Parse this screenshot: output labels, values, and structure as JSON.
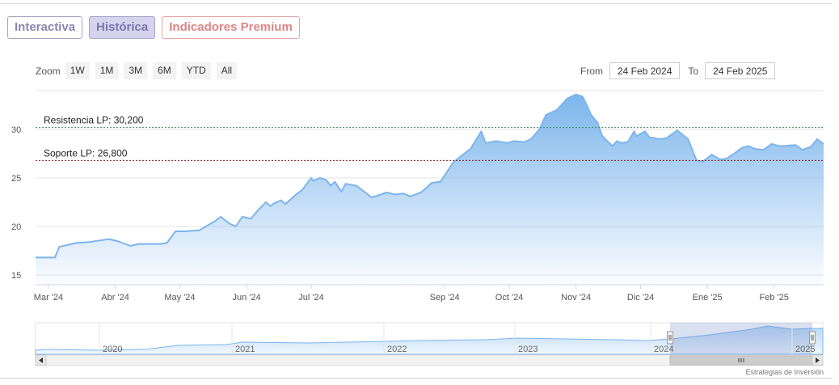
{
  "tabs": [
    {
      "label": "Interactiva"
    },
    {
      "label": "Histórica"
    },
    {
      "label": "Indicadores Premium"
    }
  ],
  "zoom": {
    "label": "Zoom",
    "buttons": [
      "1W",
      "1M",
      "3M",
      "6M",
      "YTD",
      "All"
    ]
  },
  "range": {
    "from_label": "From",
    "from_value": "24 Feb 2024",
    "to_label": "To",
    "to_value": "24 Feb 2025"
  },
  "credit": "Estrategias de Inversión",
  "colors": {
    "line": "#7cb5ec",
    "resistance": "#2e8b57",
    "support": "#8b1a1a",
    "active_tab": "#d6d3ee",
    "premium_tab": "#dd8585"
  },
  "chart_data": {
    "type": "area",
    "ylim": [
      14,
      34
    ],
    "yticks": [
      15,
      20,
      25,
      30
    ],
    "xlim": [
      "2024-02-24",
      "2025-02-24"
    ],
    "xticks": [
      {
        "label": "Mar '24",
        "date": "2024-03-01"
      },
      {
        "label": "Abr '24",
        "date": "2024-04-01"
      },
      {
        "label": "May '24",
        "date": "2024-05-01"
      },
      {
        "label": "Jun '24",
        "date": "2024-06-01"
      },
      {
        "label": "Jul '24",
        "date": "2024-07-01"
      },
      {
        "label": "Sep '24",
        "date": "2024-09-01"
      },
      {
        "label": "Oct '24",
        "date": "2024-10-01"
      },
      {
        "label": "Nov '24",
        "date": "2024-11-01"
      },
      {
        "label": "Dic '24",
        "date": "2024-12-01"
      },
      {
        "label": "Ene '25",
        "date": "2025-01-01"
      },
      {
        "label": "Feb '25",
        "date": "2025-02-01"
      }
    ],
    "reference_lines": [
      {
        "label": "Resistencia LP: 30,200",
        "value": 30.2,
        "color": "#2e8b57"
      },
      {
        "label": "Soporte LP: 26,800",
        "value": 26.8,
        "color": "#8b1a1a"
      }
    ],
    "series": [
      {
        "x": [
          "2024-02-24",
          "2024-03-04",
          "2024-03-06",
          "2024-03-14",
          "2024-03-20",
          "2024-03-29",
          "2024-04-02",
          "2024-04-08",
          "2024-04-12",
          "2024-04-22",
          "2024-04-25",
          "2024-04-29",
          "2024-05-03",
          "2024-05-10",
          "2024-05-13",
          "2024-05-17",
          "2024-05-20",
          "2024-05-24",
          "2024-05-27",
          "2024-05-30",
          "2024-06-03",
          "2024-06-06",
          "2024-06-10",
          "2024-06-12",
          "2024-06-14",
          "2024-06-17",
          "2024-06-19",
          "2024-06-20",
          "2024-06-24",
          "2024-06-27",
          "2024-07-01",
          "2024-07-02",
          "2024-07-05",
          "2024-07-08",
          "2024-07-10",
          "2024-07-12",
          "2024-07-15",
          "2024-07-17",
          "2024-07-22",
          "2024-07-25",
          "2024-07-29",
          "2024-08-01",
          "2024-08-05",
          "2024-08-09",
          "2024-08-13",
          "2024-08-16",
          "2024-08-21",
          "2024-08-26",
          "2024-08-30",
          "2024-09-05",
          "2024-09-10",
          "2024-09-13",
          "2024-09-18",
          "2024-09-20",
          "2024-09-25",
          "2024-09-30",
          "2024-10-03",
          "2024-10-08",
          "2024-10-11",
          "2024-10-15",
          "2024-10-18",
          "2024-10-23",
          "2024-10-28",
          "2024-11-01",
          "2024-11-04",
          "2024-11-06",
          "2024-11-08",
          "2024-11-11",
          "2024-11-13",
          "2024-11-15",
          "2024-11-18",
          "2024-11-20",
          "2024-11-22",
          "2024-11-25",
          "2024-11-28",
          "2024-11-29",
          "2024-12-03",
          "2024-12-05",
          "2024-12-10",
          "2024-12-13",
          "2024-12-18",
          "2024-12-23",
          "2024-12-27",
          "2024-12-30",
          "2025-01-03",
          "2025-01-07",
          "2025-01-10",
          "2025-01-14",
          "2025-01-17",
          "2025-01-20",
          "2025-01-23",
          "2025-01-27",
          "2025-01-31",
          "2025-02-03",
          "2025-02-06",
          "2025-02-11",
          "2025-02-14",
          "2025-02-18",
          "2025-02-21",
          "2025-02-24"
        ],
        "y": [
          16.8,
          16.8,
          17.9,
          18.3,
          18.4,
          18.7,
          18.5,
          18.0,
          18.2,
          18.2,
          18.3,
          19.5,
          19.5,
          19.6,
          20.0,
          20.5,
          21.0,
          20.3,
          20.0,
          21.0,
          20.8,
          21.6,
          22.5,
          22.1,
          22.4,
          22.7,
          22.3,
          22.5,
          23.3,
          23.8,
          25.0,
          24.7,
          25.0,
          24.8,
          24.2,
          24.6,
          23.6,
          24.4,
          24.2,
          23.7,
          23.0,
          23.2,
          23.5,
          23.3,
          23.4,
          23.1,
          23.5,
          24.5,
          24.6,
          26.6,
          27.5,
          28.0,
          29.8,
          28.6,
          28.8,
          28.6,
          28.8,
          28.7,
          29.0,
          30.0,
          31.5,
          32.0,
          33.2,
          33.6,
          33.4,
          32.5,
          31.5,
          30.7,
          29.4,
          28.9,
          28.3,
          28.8,
          28.6,
          28.7,
          29.8,
          29.3,
          29.8,
          29.2,
          29.0,
          29.1,
          29.9,
          29.0,
          26.8,
          26.7,
          27.4,
          26.9,
          27.0,
          27.6,
          28.1,
          28.3,
          28.0,
          27.9,
          28.5,
          28.3,
          28.3,
          28.4,
          27.9,
          28.2,
          29.0,
          28.5
        ]
      }
    ]
  },
  "navigator": {
    "year_labels": [
      "2020",
      "2021",
      "2022",
      "2023",
      "2024",
      "2025"
    ]
  }
}
